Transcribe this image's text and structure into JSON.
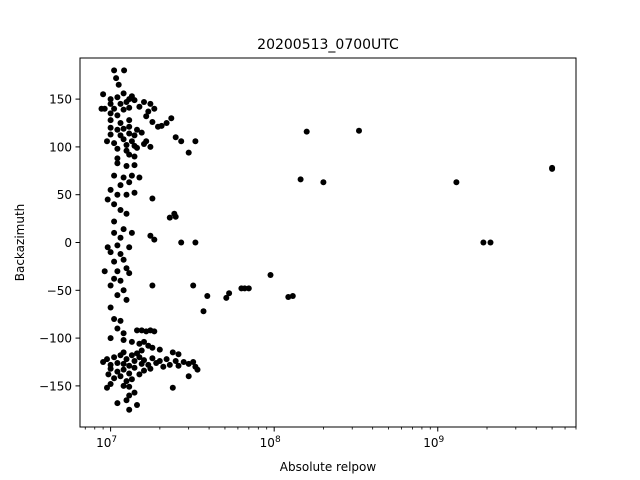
{
  "chart_data": {
    "type": "scatter",
    "title": "20200513_0700UTC",
    "xlabel": "Absolute relpow",
    "ylabel": "Backazimuth",
    "x_scale": "log",
    "xlim": [
      6500000,
      7000000000
    ],
    "ylim": [
      -193,
      193
    ],
    "x_tick_labels": [
      {
        "value": 10000000,
        "mantissa": "10",
        "exp": "7"
      },
      {
        "value": 100000000,
        "mantissa": "10",
        "exp": "8"
      },
      {
        "value": 1000000000,
        "mantissa": "10",
        "exp": "9"
      }
    ],
    "y_ticks": [
      -150,
      -100,
      -50,
      0,
      50,
      100,
      150
    ],
    "y_tick_labels": [
      "−150",
      "−100",
      "−50",
      "0",
      "50",
      "100",
      "150"
    ],
    "grid": false,
    "marker_color": "#000000",
    "points": [
      [
        10500000.0,
        180
      ],
      [
        12100000.0,
        180
      ],
      [
        10800000.0,
        172
      ],
      [
        11200000.0,
        165
      ],
      [
        9000000.0,
        155
      ],
      [
        10000000.0,
        150
      ],
      [
        11000000.0,
        152
      ],
      [
        12000000.0,
        156
      ],
      [
        13000000.0,
        150
      ],
      [
        13500000.0,
        153
      ],
      [
        10000000.0,
        145
      ],
      [
        11500000.0,
        145
      ],
      [
        12500000.0,
        147
      ],
      [
        14000000.0,
        149
      ],
      [
        16000000.0,
        147
      ],
      [
        17500000.0,
        145
      ],
      [
        10500000.0,
        140
      ],
      [
        12000000.0,
        139
      ],
      [
        13000000.0,
        141
      ],
      [
        15000000.0,
        142
      ],
      [
        9200000.0,
        140
      ],
      [
        8800000.0,
        140
      ],
      [
        10000000.0,
        135
      ],
      [
        11000000.0,
        133
      ],
      [
        17000000.0,
        137
      ],
      [
        16500000.0,
        132
      ],
      [
        18500000.0,
        140
      ],
      [
        10000000.0,
        128
      ],
      [
        11500000.0,
        125
      ],
      [
        13000000.0,
        128
      ],
      [
        23500000.0,
        130
      ],
      [
        22000000.0,
        125
      ],
      [
        18000000.0,
        126
      ],
      [
        19500000.0,
        121
      ],
      [
        20500000.0,
        122
      ],
      [
        10000000.0,
        120
      ],
      [
        11000000.0,
        118
      ],
      [
        12000000.0,
        119
      ],
      [
        13000000.0,
        121
      ],
      [
        14500000.0,
        118
      ],
      [
        15500000.0,
        115
      ],
      [
        10000000.0,
        113
      ],
      [
        11500000.0,
        112
      ],
      [
        13000000.0,
        114
      ],
      [
        14000000.0,
        112
      ],
      [
        12000000.0,
        108
      ],
      [
        13500000.0,
        106
      ],
      [
        9500000.0,
        106
      ],
      [
        10500000.0,
        104
      ],
      [
        12500000.0,
        102
      ],
      [
        14000000.0,
        101
      ],
      [
        16000000.0,
        103
      ],
      [
        11000000.0,
        98
      ],
      [
        12500000.0,
        96
      ],
      [
        14500000.0,
        99
      ],
      [
        16500000.0,
        106
      ],
      [
        17500000.0,
        100
      ],
      [
        13000000.0,
        92
      ],
      [
        11000000.0,
        88
      ],
      [
        14000000.0,
        90
      ],
      [
        25000000.0,
        110
      ],
      [
        27000000.0,
        106
      ],
      [
        33000000.0,
        106
      ],
      [
        30000000.0,
        94
      ],
      [
        158000000.0,
        116
      ],
      [
        330000000.0,
        117
      ],
      [
        11000000.0,
        83
      ],
      [
        12500000.0,
        80
      ],
      [
        14000000.0,
        81
      ],
      [
        10500000.0,
        70
      ],
      [
        12000000.0,
        68
      ],
      [
        13500000.0,
        70
      ],
      [
        15000000.0,
        68
      ],
      [
        11500000.0,
        60
      ],
      [
        13000000.0,
        63
      ],
      [
        10000000.0,
        55
      ],
      [
        11000000.0,
        50
      ],
      [
        12500000.0,
        50
      ],
      [
        14000000.0,
        52
      ],
      [
        18000000.0,
        46
      ],
      [
        9600000.0,
        45
      ],
      [
        10500000.0,
        40
      ],
      [
        11500000.0,
        34
      ],
      [
        12500000.0,
        30
      ],
      [
        10500000.0,
        22
      ],
      [
        24500000.0,
        30
      ],
      [
        25000000.0,
        27
      ],
      [
        23000000.0,
        26
      ],
      [
        145000000.0,
        66
      ],
      [
        200000000.0,
        63
      ],
      [
        1300000000.0,
        63
      ],
      [
        5000000000.0,
        78
      ],
      [
        5000000000.0,
        77
      ],
      [
        12000000.0,
        14
      ],
      [
        10500000.0,
        10
      ],
      [
        13500000.0,
        10
      ],
      [
        11500000.0,
        5
      ],
      [
        17500000.0,
        7
      ],
      [
        18500000.0,
        3
      ],
      [
        27000000.0,
        0
      ],
      [
        33000000.0,
        0
      ],
      [
        1900000000.0,
        0
      ],
      [
        2100000000.0,
        0
      ],
      [
        11000000.0,
        -3
      ],
      [
        9600000.0,
        -5
      ],
      [
        13000000.0,
        -5
      ],
      [
        10000000.0,
        -10
      ],
      [
        11500000.0,
        -12
      ],
      [
        12000000.0,
        -18
      ],
      [
        10500000.0,
        -20
      ],
      [
        9200000.0,
        -30
      ],
      [
        12500000.0,
        -27
      ],
      [
        11000000.0,
        -30
      ],
      [
        13000000.0,
        -32
      ],
      [
        10500000.0,
        -38
      ],
      [
        11500000.0,
        -40
      ],
      [
        10000000.0,
        -45
      ],
      [
        18000000.0,
        -45
      ],
      [
        12000000.0,
        -50
      ],
      [
        11000000.0,
        -55
      ],
      [
        12500000.0,
        -60
      ],
      [
        95000000.0,
        -34
      ],
      [
        32000000.0,
        -45
      ],
      [
        39000000.0,
        -56
      ],
      [
        51000000.0,
        -58
      ],
      [
        53000000.0,
        -53
      ],
      [
        63000000.0,
        -48
      ],
      [
        66000000.0,
        -48
      ],
      [
        70000000.0,
        -48
      ],
      [
        122000000.0,
        -57
      ],
      [
        130000000.0,
        -56
      ],
      [
        37000000.0,
        -72
      ],
      [
        10000000.0,
        -68
      ],
      [
        10500000.0,
        -80
      ],
      [
        11500000.0,
        -82
      ],
      [
        11000000.0,
        -90
      ],
      [
        12000000.0,
        -95
      ],
      [
        14500000.0,
        -92
      ],
      [
        15500000.0,
        -92
      ],
      [
        16500000.0,
        -93
      ],
      [
        17500000.0,
        -92
      ],
      [
        18500000.0,
        -93
      ],
      [
        10000000.0,
        -100
      ],
      [
        12000000.0,
        -102
      ],
      [
        13500000.0,
        -104
      ],
      [
        15000000.0,
        -106
      ],
      [
        16000000.0,
        -104
      ],
      [
        17000000.0,
        -108
      ],
      [
        15500000.0,
        -113
      ],
      [
        12000000.0,
        -115
      ],
      [
        14500000.0,
        -116
      ],
      [
        18000000.0,
        -110
      ],
      [
        20000000.0,
        -112
      ],
      [
        24000000.0,
        -115
      ],
      [
        26000000.0,
        -117
      ],
      [
        9000000.0,
        -125
      ],
      [
        9500000.0,
        -122
      ],
      [
        10000000.0,
        -128
      ],
      [
        10500000.0,
        -120
      ],
      [
        11000000.0,
        -126
      ],
      [
        11500000.0,
        -118
      ],
      [
        12000000.0,
        -127
      ],
      [
        12500000.0,
        -122
      ],
      [
        13000000.0,
        -129
      ],
      [
        13500000.0,
        -118
      ],
      [
        14000000.0,
        -124
      ],
      [
        15000000.0,
        -120
      ],
      [
        15500000.0,
        -127
      ],
      [
        16000000.0,
        -123
      ],
      [
        17000000.0,
        -128
      ],
      [
        18000000.0,
        -121
      ],
      [
        19000000.0,
        -126
      ],
      [
        20000000.0,
        -124
      ],
      [
        21000000.0,
        -130
      ],
      [
        22000000.0,
        -122
      ],
      [
        23000000.0,
        -128
      ],
      [
        25000000.0,
        -124
      ],
      [
        26000000.0,
        -129
      ],
      [
        28000000.0,
        -125
      ],
      [
        30000000.0,
        -127
      ],
      [
        32000000.0,
        -125
      ],
      [
        33000000.0,
        -130
      ],
      [
        34000000.0,
        -133
      ],
      [
        10000000.0,
        -132
      ],
      [
        11000000.0,
        -135
      ],
      [
        12000000.0,
        -133
      ],
      [
        13000000.0,
        -137
      ],
      [
        14000000.0,
        -131
      ],
      [
        16000000.0,
        -134
      ],
      [
        17500000.0,
        -132
      ],
      [
        9700000.0,
        -138
      ],
      [
        10500000.0,
        -142
      ],
      [
        11500000.0,
        -140
      ],
      [
        12500000.0,
        -145
      ],
      [
        13500000.0,
        -143
      ],
      [
        15000000.0,
        -138
      ],
      [
        10000000.0,
        -148
      ],
      [
        12000000.0,
        -150
      ],
      [
        9500000.0,
        -152
      ],
      [
        13000000.0,
        -151
      ],
      [
        24000000.0,
        -152
      ],
      [
        30000000.0,
        -140
      ],
      [
        14000000.0,
        -157
      ],
      [
        13000000.0,
        -160
      ],
      [
        11000000.0,
        -168
      ],
      [
        12500000.0,
        -165
      ],
      [
        14500000.0,
        -170
      ],
      [
        13000000.0,
        -175
      ]
    ]
  }
}
